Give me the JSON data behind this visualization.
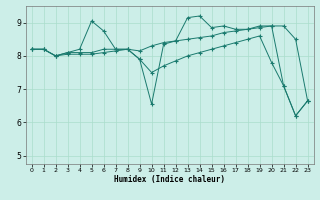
{
  "xlabel": "Humidex (Indice chaleur)",
  "bg_color": "#cceee8",
  "line_color": "#1a7a6e",
  "grid_color": "#aaddcc",
  "xlim": [
    -0.5,
    23.5
  ],
  "ylim": [
    4.75,
    9.5
  ],
  "yticks": [
    5,
    6,
    7,
    8,
    9
  ],
  "xticks": [
    0,
    1,
    2,
    3,
    4,
    5,
    6,
    7,
    8,
    9,
    10,
    11,
    12,
    13,
    14,
    15,
    16,
    17,
    18,
    19,
    20,
    21,
    22,
    23
  ],
  "series1_x": [
    0,
    1,
    2,
    3,
    4,
    5,
    6,
    7,
    8,
    9,
    10,
    11,
    12,
    13,
    14,
    15,
    16,
    17,
    18,
    19,
    20,
    21,
    22,
    23
  ],
  "series1_y": [
    8.2,
    8.2,
    8.0,
    8.1,
    8.2,
    9.05,
    8.75,
    8.2,
    8.2,
    7.9,
    6.55,
    8.35,
    8.45,
    9.15,
    9.2,
    8.85,
    8.9,
    8.8,
    8.8,
    8.9,
    8.9,
    7.1,
    6.2,
    6.65
  ],
  "series2_x": [
    0,
    1,
    2,
    3,
    4,
    5,
    6,
    7,
    8,
    9,
    10,
    11,
    12,
    13,
    14,
    15,
    16,
    17,
    18,
    19,
    20,
    21,
    22,
    23
  ],
  "series2_y": [
    8.2,
    8.2,
    8.0,
    8.1,
    8.1,
    8.1,
    8.2,
    8.2,
    8.2,
    8.15,
    8.3,
    8.4,
    8.45,
    8.5,
    8.55,
    8.6,
    8.7,
    8.75,
    8.8,
    8.85,
    8.9,
    8.9,
    8.5,
    6.65
  ],
  "series3_x": [
    0,
    1,
    2,
    3,
    4,
    5,
    6,
    7,
    8,
    9,
    10,
    11,
    12,
    13,
    14,
    15,
    16,
    17,
    18,
    19,
    20,
    21,
    22,
    23
  ],
  "series3_y": [
    8.2,
    8.2,
    8.0,
    8.05,
    8.05,
    8.05,
    8.1,
    8.15,
    8.2,
    7.9,
    7.5,
    7.7,
    7.85,
    8.0,
    8.1,
    8.2,
    8.3,
    8.4,
    8.5,
    8.6,
    7.8,
    7.1,
    6.2,
    6.65
  ]
}
